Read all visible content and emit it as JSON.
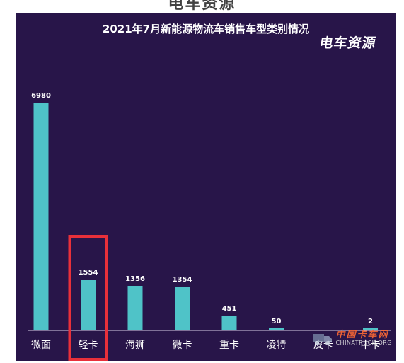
{
  "header": {
    "cut_text": "电车资源"
  },
  "brand": {
    "text": "电车资源"
  },
  "watermark": {
    "cn": "中国卡车网",
    "en": "CHINATRUCK.ORG"
  },
  "colors": {
    "background": "#281549",
    "bar": "#4fc3c8",
    "highlight": "#e8303a",
    "text": "#ffffff"
  },
  "chart_data": {
    "type": "bar",
    "title": "2021年7月新能源物流车销售车型类别情况",
    "categories": [
      "微面",
      "轻卡",
      "海狮",
      "微卡",
      "重卡",
      "凌特",
      "皮卡",
      "中卡"
    ],
    "values": [
      6980,
      1554,
      1356,
      1354,
      451,
      50,
      0,
      2
    ],
    "value_labels": [
      "6980",
      "1554",
      "1356",
      "1354",
      "451",
      "50",
      "",
      "2"
    ],
    "highlighted_category": "轻卡",
    "ylim": [
      0,
      7500
    ],
    "grid": false,
    "xlabel": "",
    "ylabel": ""
  }
}
